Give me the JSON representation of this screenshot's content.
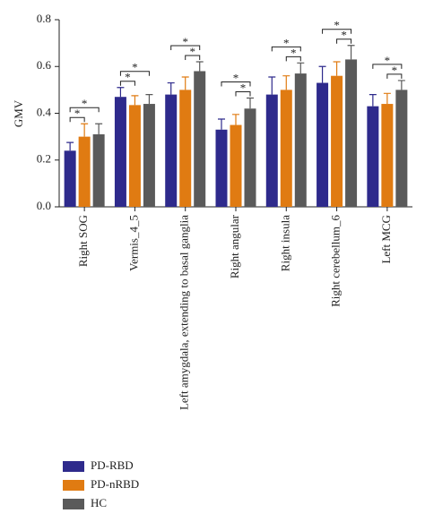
{
  "chart_data": {
    "type": "bar",
    "y_label": "GMV",
    "categories": [
      "Right SOG",
      "Vermis_4_5",
      "Left amygdala, extending to basal ganglia",
      "Right angular",
      "Right insula",
      "Right cerebellum_6",
      "Left MCG"
    ],
    "series": [
      {
        "name": "PD-RBD",
        "color": "#2e2a8c",
        "values": [
          0.24,
          0.47,
          0.48,
          0.33,
          0.48,
          0.53,
          0.43
        ],
        "errors": [
          0.035,
          0.04,
          0.05,
          0.045,
          0.075,
          0.07,
          0.05
        ]
      },
      {
        "name": "PD-nRBD",
        "color": "#e07b12",
        "values": [
          0.3,
          0.435,
          0.5,
          0.35,
          0.5,
          0.56,
          0.44
        ],
        "errors": [
          0.055,
          0.04,
          0.055,
          0.045,
          0.06,
          0.06,
          0.045
        ]
      },
      {
        "name": "HC",
        "color": "#5a5a5a",
        "values": [
          0.31,
          0.44,
          0.58,
          0.42,
          0.57,
          0.63,
          0.5
        ],
        "errors": [
          0.045,
          0.04,
          0.04,
          0.045,
          0.045,
          0.06,
          0.04
        ]
      }
    ],
    "annotations": [
      "*",
      "*",
      "*",
      "*",
      "*",
      "*",
      "*",
      "*",
      "*",
      "*",
      "*",
      "*",
      "*",
      "*"
    ],
    "ylim": [
      0,
      0.8
    ],
    "yticks": [
      {
        "value": 0,
        "label": "0.0"
      },
      0.2,
      0.4,
      0.6,
      0.8
    ],
    "grid": false,
    "legend": "bottom-left"
  }
}
